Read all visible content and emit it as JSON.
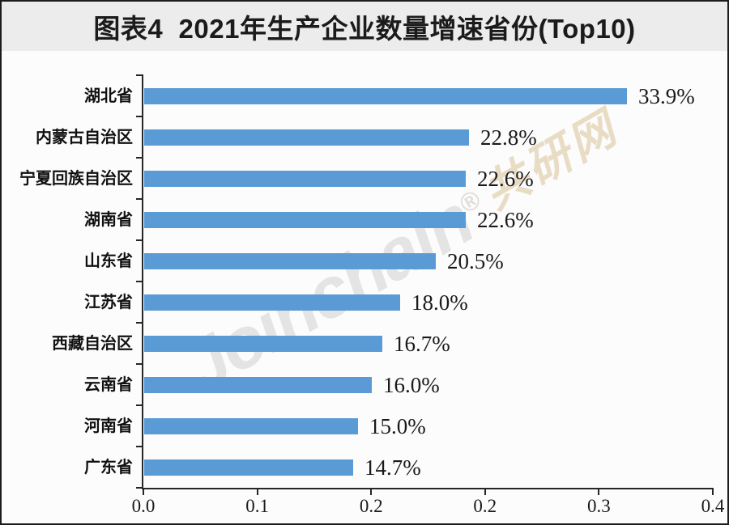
{
  "title": "图表4  2021年生产企业数量增速省份(Top10)",
  "watermark": {
    "text": "Joinchain",
    "reg": "®",
    "suffix": "共研网",
    "text_color": "#e4e4e4",
    "suffix_color": "#e9dcc4"
  },
  "chart_data": {
    "type": "bar",
    "orientation": "horizontal",
    "title": "图表4  2021年生产企业数量增速省份(Top10)",
    "categories": [
      "湖北省",
      "内蒙古自治区",
      "宁夏回族自治区",
      "湖南省",
      "山东省",
      "江苏省",
      "西藏自治区",
      "云南省",
      "河南省",
      "广东省"
    ],
    "values": [
      0.339,
      0.228,
      0.226,
      0.226,
      0.205,
      0.18,
      0.167,
      0.16,
      0.15,
      0.147
    ],
    "value_labels": [
      "33.9%",
      "22.8%",
      "22.6%",
      "22.6%",
      "20.5%",
      "18.0%",
      "16.7%",
      "16.0%",
      "15.0%",
      "14.7%"
    ],
    "xlim": [
      0,
      0.4
    ],
    "x_tick_labels": [
      "0.0",
      "0.1",
      "0.2",
      "0.2",
      "0.3",
      "0.4"
    ],
    "grid": false,
    "legend": "none",
    "bar_color": "#5B9BD5",
    "axis_color": "#262626",
    "label_color": "#1a1a1a",
    "title_band_color": "#ececec",
    "background_color": "#fcfcfc"
  }
}
